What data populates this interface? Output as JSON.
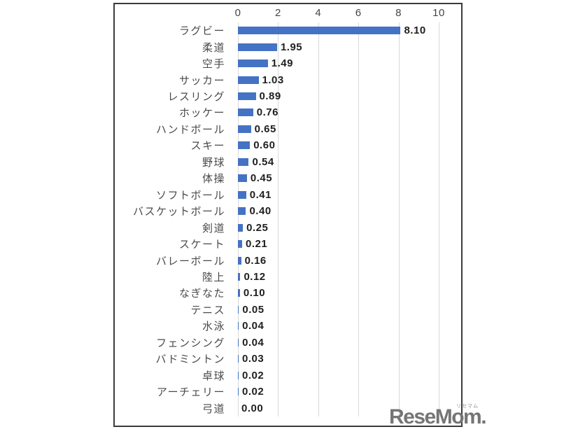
{
  "page": {
    "background": "#ffffff"
  },
  "chart": {
    "border_color": "#3b3b3b",
    "background": "#ffffff"
  },
  "chart_data": {
    "type": "bar",
    "orientation": "horizontal",
    "title": "",
    "xlabel": "",
    "ylabel": "",
    "axis_position": "top",
    "grid": true,
    "xlim": [
      0,
      10
    ],
    "x_ticks": [
      "0",
      "2",
      "4",
      "6",
      "8",
      "10"
    ],
    "categories": [
      "ラグビー",
      "柔道",
      "空手",
      "サッカー",
      "レスリング",
      "ホッケー",
      "ハンドボール",
      "スキー",
      "野球",
      "体操",
      "ソフトボール",
      "バスケットボール",
      "剣道",
      "スケート",
      "バレーボール",
      "陸上",
      "なぎなた",
      "テニス",
      "水泳",
      "フェンシング",
      "バドミントン",
      "卓球",
      "アーチェリー",
      "弓道"
    ],
    "values": [
      8.1,
      1.95,
      1.49,
      1.03,
      0.89,
      0.76,
      0.65,
      0.6,
      0.54,
      0.45,
      0.41,
      0.4,
      0.25,
      0.21,
      0.16,
      0.12,
      0.1,
      0.05,
      0.04,
      0.04,
      0.03,
      0.02,
      0.02,
      0.0
    ],
    "value_labels": [
      "8.10",
      "1.95",
      "1.49",
      "1.03",
      "0.89",
      "0.76",
      "0.65",
      "0.60",
      "0.54",
      "0.45",
      "0.41",
      "0.40",
      "0.25",
      "0.21",
      "0.16",
      "0.12",
      "0.10",
      "0.05",
      "0.04",
      "0.04",
      "0.03",
      "0.02",
      "0.02",
      "0.00"
    ],
    "bar_color": "#4472C4",
    "gridline_color": "#d9d9d9",
    "legend_position": "none"
  },
  "watermark": {
    "text": "ReseMom.",
    "ruby": "リセマム"
  }
}
